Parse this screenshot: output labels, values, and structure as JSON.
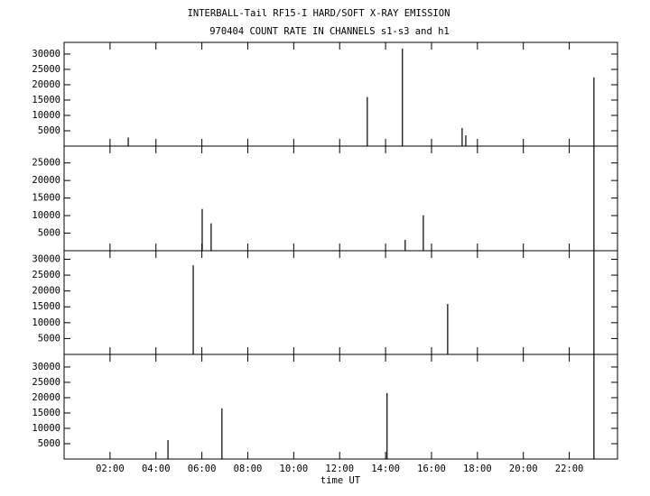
{
  "chart_data": [
    {
      "type": "bar",
      "title": "INTERBALL-Tail RF15-I HARD/SOFT X-RAY EMISSION",
      "subtitle": "970404  COUNT RATE IN CHANNELS s1-s3 and h1",
      "x": [
        2.79,
        13.2,
        14.73,
        17.33,
        17.49,
        23.07
      ],
      "values": [
        2800,
        16000,
        31800,
        5900,
        3500,
        22400
      ],
      "color": "#000000",
      "xlim": [
        0,
        24.1
      ],
      "ylim": [
        0,
        33800
      ],
      "yticks": [
        5000,
        10000,
        15000,
        20000,
        25000,
        30000
      ]
    },
    {
      "type": "bar",
      "x": [
        6.01,
        6.4,
        14.85,
        15.64,
        23.07
      ],
      "values": [
        11900,
        7800,
        3100,
        10100,
        29800
      ],
      "color": "#000000",
      "xlim": [
        0,
        24.1
      ],
      "ylim": [
        0,
        29800
      ],
      "yticks": [
        5000,
        10000,
        15000,
        20000,
        25000
      ]
    },
    {
      "type": "bar",
      "x": [
        5.62,
        16.7,
        23.07
      ],
      "values": [
        28100,
        15900,
        32700
      ],
      "color": "#000000",
      "xlim": [
        0,
        24.1
      ],
      "ylim": [
        0,
        32700
      ],
      "yticks": [
        5000,
        10000,
        15000,
        20000,
        25000,
        30000
      ]
    },
    {
      "type": "bar",
      "x": [
        4.52,
        6.87,
        14.06,
        23.07
      ],
      "values": [
        6200,
        16500,
        21500,
        34100
      ],
      "color": "#000000",
      "xlim": [
        0,
        24.1
      ],
      "ylim": [
        0,
        34100
      ],
      "yticks": [
        5000,
        10000,
        15000,
        20000,
        25000,
        30000
      ],
      "x_label": "time UT",
      "xticks": [
        {
          "value": 2,
          "label": "02:00"
        },
        {
          "value": 4,
          "label": "04:00"
        },
        {
          "value": 6,
          "label": "06:00"
        },
        {
          "value": 8,
          "label": "08:00"
        },
        {
          "value": 10,
          "label": "10:00"
        },
        {
          "value": 12,
          "label": "12:00"
        },
        {
          "value": 14,
          "label": "14:00"
        },
        {
          "value": 16,
          "label": "16:00"
        },
        {
          "value": 18,
          "label": "18:00"
        },
        {
          "value": 20,
          "label": "20:00"
        },
        {
          "value": 22,
          "label": "22:00"
        }
      ]
    }
  ]
}
